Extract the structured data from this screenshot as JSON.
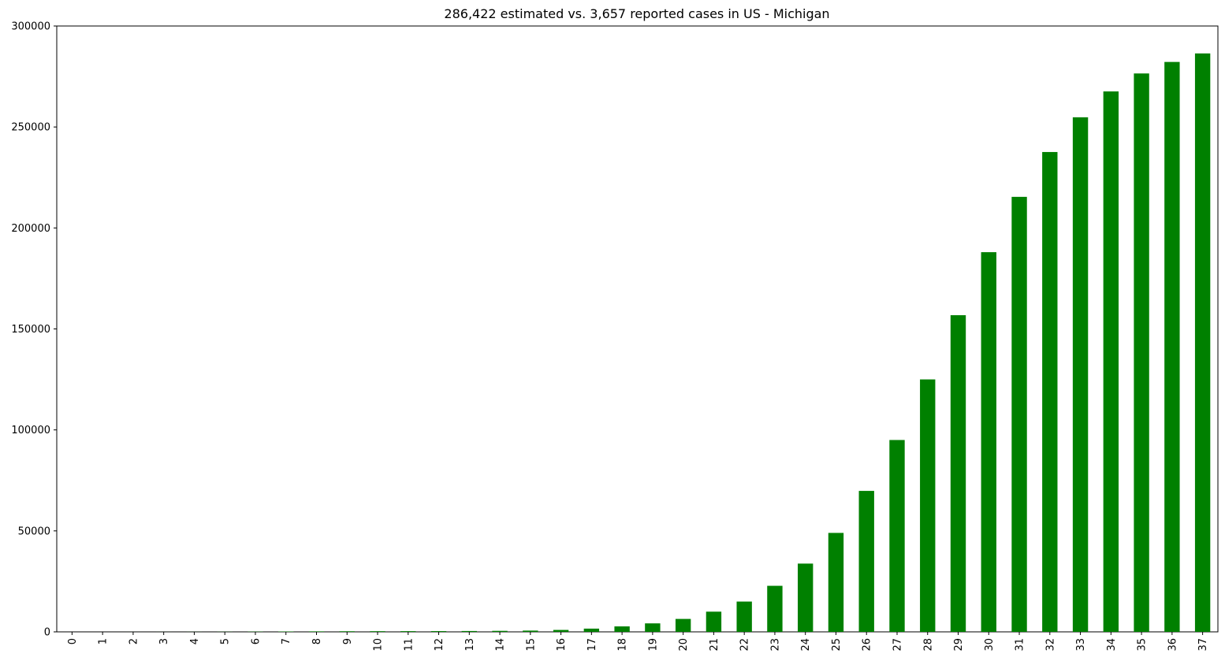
{
  "chart_data": {
    "type": "bar",
    "title": "286,422 estimated vs. 3,657 reported cases in US - Michigan",
    "xlabel": "",
    "ylabel": "",
    "categories": [
      "0",
      "1",
      "2",
      "3",
      "4",
      "5",
      "6",
      "7",
      "8",
      "9",
      "10",
      "11",
      "12",
      "13",
      "14",
      "15",
      "16",
      "17",
      "18",
      "19",
      "20",
      "21",
      "22",
      "23",
      "24",
      "25",
      "26",
      "27",
      "28",
      "29",
      "30",
      "31",
      "32",
      "33",
      "34",
      "35",
      "36",
      "37"
    ],
    "values": [
      2,
      5,
      10,
      20,
      40,
      70,
      120,
      180,
      240,
      300,
      330,
      350,
      370,
      420,
      500,
      620,
      950,
      1600,
      2700,
      4200,
      6400,
      10000,
      15000,
      22800,
      33800,
      49000,
      69800,
      95000,
      125000,
      156800,
      188000,
      215400,
      237600,
      254800,
      267600,
      276500,
      282200,
      286422
    ],
    "ylim": [
      0,
      300000
    ],
    "yticks": [
      "0",
      "50000",
      "100000",
      "150000",
      "200000",
      "250000",
      "300000"
    ],
    "bar_color": "#008000",
    "grid": false,
    "legend": "none"
  }
}
